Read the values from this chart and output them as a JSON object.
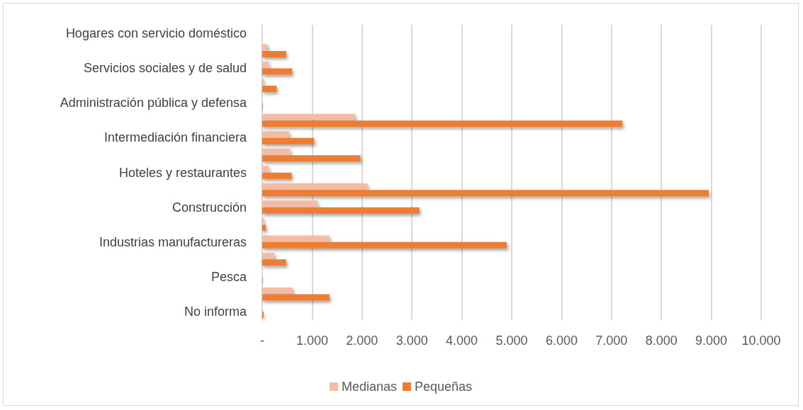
{
  "chart_data": {
    "type": "bar",
    "orientation": "horizontal",
    "categories": [
      "Hogares con servicio doméstico",
      null,
      "Servicios sociales y de salud",
      null,
      "Administración pública y defensa",
      null,
      "Intermediación financiera",
      null,
      "Hoteles y restaurantes",
      null,
      "Construcción",
      null,
      "Industrias manufactureras",
      null,
      "Pesca",
      null,
      "No informa"
    ],
    "series": [
      {
        "name": "Medianas",
        "color": "#f6bba3",
        "values": [
          0,
          110,
          130,
          40,
          0,
          1860,
          540,
          560,
          130,
          2110,
          1110,
          40,
          1350,
          240,
          0,
          610,
          0
        ]
      },
      {
        "name": "Pequeñas",
        "color": "#ed7d31",
        "values": [
          0,
          480,
          600,
          290,
          10,
          7220,
          1040,
          1970,
          590,
          8950,
          3150,
          70,
          4900,
          480,
          10,
          1350,
          30
        ]
      }
    ],
    "xlim": [
      0,
      10000
    ],
    "xticks": [
      {
        "value": 0,
        "label": "-"
      },
      {
        "value": 1000,
        "label": "1.000"
      },
      {
        "value": 2000,
        "label": "2.000"
      },
      {
        "value": 3000,
        "label": "3.000"
      },
      {
        "value": 4000,
        "label": "4.000"
      },
      {
        "value": 5000,
        "label": "5.000"
      },
      {
        "value": 6000,
        "label": "6.000"
      },
      {
        "value": 7000,
        "label": "7.000"
      },
      {
        "value": 8000,
        "label": "8.000"
      },
      {
        "value": 9000,
        "label": "9.000"
      },
      {
        "value": 10000,
        "label": "10.000"
      }
    ],
    "grid": "x",
    "legend": "bottom"
  }
}
